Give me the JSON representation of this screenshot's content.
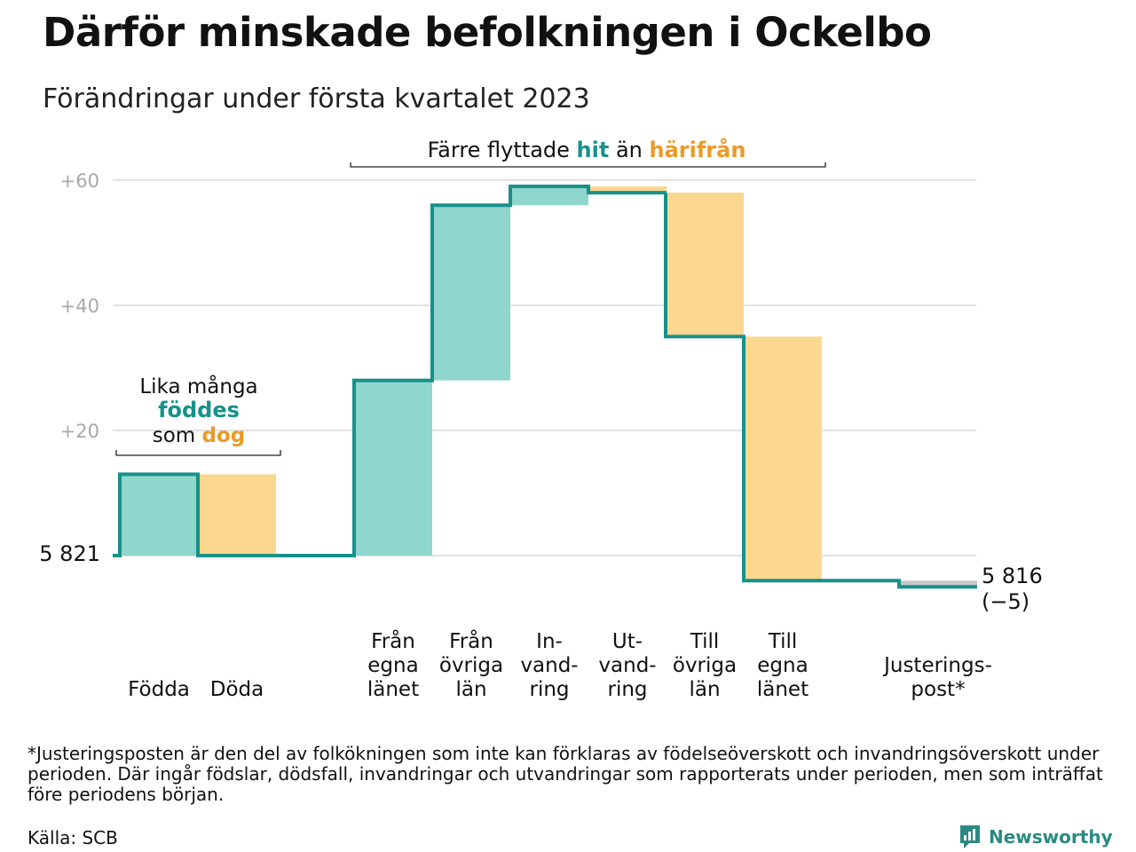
{
  "title": "Därför minskade befolkningen i Ockelbo",
  "subtitle": "Förändringar under första kvartalet 2023",
  "chart_data": {
    "type": "waterfall",
    "baseline_label": "5 821",
    "end_label_line1": "5 816",
    "end_label_line2": "(−5)",
    "ylim": [
      -5,
      61
    ],
    "yticks": [
      {
        "value": 20,
        "label": "+20"
      },
      {
        "value": 40,
        "label": "+40"
      },
      {
        "value": 60,
        "label": "+60"
      }
    ],
    "steps": [
      {
        "lines": [
          "Födda"
        ],
        "change": 13,
        "kind": "inflow"
      },
      {
        "lines": [
          "Döda"
        ],
        "change": -13,
        "kind": "outflow"
      },
      {
        "lines": [
          "Från",
          "egna",
          "länet"
        ],
        "change": 28,
        "kind": "inflow"
      },
      {
        "lines": [
          "Från",
          "övriga",
          "län"
        ],
        "change": 28,
        "kind": "inflow"
      },
      {
        "lines": [
          "In-",
          "vand-",
          "ring"
        ],
        "change": 3,
        "kind": "inflow"
      },
      {
        "lines": [
          "Ut-",
          "vand-",
          "ring"
        ],
        "change": -1,
        "kind": "outflow"
      },
      {
        "lines": [
          "Till",
          "övriga",
          "län"
        ],
        "change": -23,
        "kind": "outflow"
      },
      {
        "lines": [
          "Till",
          "egna",
          "länet"
        ],
        "change": -39,
        "kind": "outflow"
      },
      {
        "lines": [
          "Justerings-",
          "post*"
        ],
        "change": -1,
        "kind": "adjustment"
      }
    ],
    "annotations": {
      "births_deaths": {
        "line1": "Lika många",
        "highlight1": "föddes",
        "line3_prefix": "som ",
        "highlight2": "dog"
      },
      "migration": {
        "prefix": "Färre flyttade ",
        "highlight1": "hit",
        "middle": " än ",
        "highlight2": "härifrån"
      }
    },
    "colors": {
      "inflow": "#8fd6cc",
      "outflow": "#fbd790",
      "adjustment": "#c8c8c8",
      "line": "#17918a",
      "highlight_teal": "#17918a",
      "highlight_orange": "#eb9a25",
      "grid": "#e2e2e2",
      "tick_label": "#a9a9a9"
    }
  },
  "footnote": "*Justeringsposten är den del av folkökningen som inte kan förklaras av födelseöverskott och invandringsöverskott under perioden. Där ingår födslar, dödsfall, invandringar och utvandringar som rapporterats under perioden, men som inträffat före periodens början.",
  "source": "Källa: SCB",
  "brand": "Newsworthy",
  "brand_icon": "newsworthy-logo-icon"
}
